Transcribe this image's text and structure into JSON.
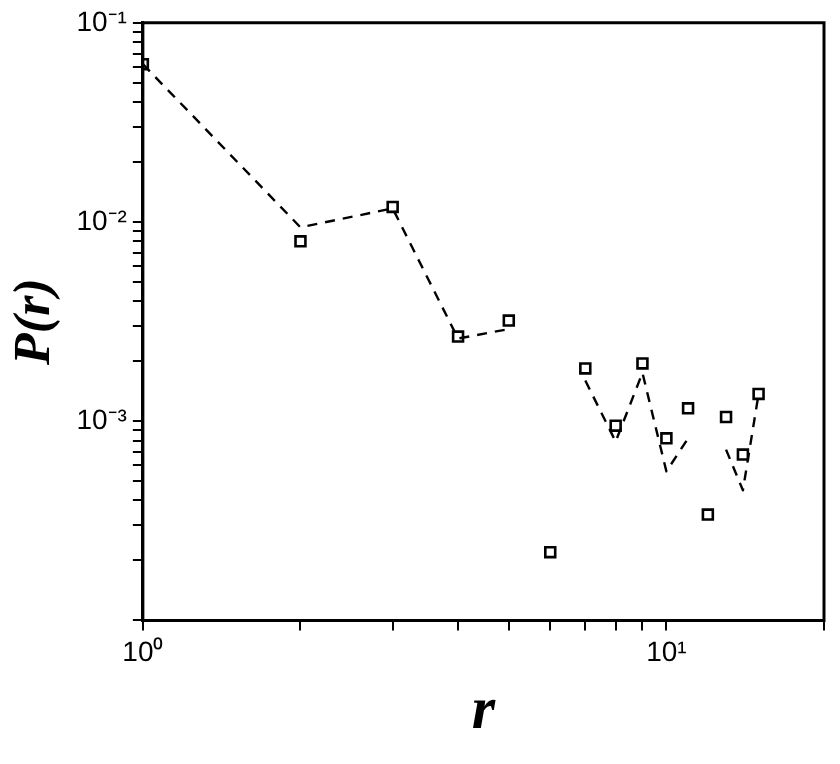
{
  "chart_data": {
    "type": "scatter",
    "xlabel": "r",
    "ylabel": "P(r)",
    "log": "xy",
    "grid": false,
    "legend": false,
    "x": [
      1,
      2,
      3,
      4,
      5,
      6,
      7,
      8,
      9,
      10,
      11,
      12,
      13,
      14,
      15
    ],
    "xlim": [
      1,
      20
    ],
    "ylim": [
      0.0001,
      0.1
    ],
    "xticks": [
      {
        "value": 1,
        "label": "10⁰"
      },
      {
        "value": 2,
        "label": null
      },
      {
        "value": 3,
        "label": null
      },
      {
        "value": 4,
        "label": null
      },
      {
        "value": 5,
        "label": null
      },
      {
        "value": 6,
        "label": null
      },
      {
        "value": 7,
        "label": null
      },
      {
        "value": 8,
        "label": null
      },
      {
        "value": 9,
        "label": null
      },
      {
        "value": 10,
        "label": "10¹"
      },
      {
        "value": 20,
        "label": null
      }
    ],
    "yticks": [
      {
        "value": 0.0001,
        "label": null
      },
      {
        "value": 0.0002,
        "label": null
      },
      {
        "value": 0.0003,
        "label": null
      },
      {
        "value": 0.0004,
        "label": null
      },
      {
        "value": 0.0005,
        "label": null
      },
      {
        "value": 0.0006,
        "label": null
      },
      {
        "value": 0.0007,
        "label": null
      },
      {
        "value": 0.0008,
        "label": null
      },
      {
        "value": 0.0009,
        "label": null
      },
      {
        "value": 0.001,
        "label": "10⁻³"
      },
      {
        "value": 0.002,
        "label": null
      },
      {
        "value": 0.003,
        "label": null
      },
      {
        "value": 0.004,
        "label": null
      },
      {
        "value": 0.005,
        "label": null
      },
      {
        "value": 0.006,
        "label": null
      },
      {
        "value": 0.007,
        "label": null
      },
      {
        "value": 0.008,
        "label": null
      },
      {
        "value": 0.009,
        "label": null
      },
      {
        "value": 0.01,
        "label": "10⁻²"
      },
      {
        "value": 0.02,
        "label": null
      },
      {
        "value": 0.03,
        "label": null
      },
      {
        "value": 0.04,
        "label": null
      },
      {
        "value": 0.05,
        "label": null
      },
      {
        "value": 0.06,
        "label": null
      },
      {
        "value": 0.07,
        "label": null
      },
      {
        "value": 0.08,
        "label": null
      },
      {
        "value": 0.09,
        "label": null
      },
      {
        "value": 0.1,
        "label": "10⁻¹"
      }
    ],
    "series": [
      {
        "type": "line",
        "color": "#000000",
        "marker": "none",
        "line_style": "dashed",
        "values": [
          0.062,
          0.0094,
          0.0117,
          0.0026,
          0.0029,
          null,
          0.0016,
          0.00079,
          0.00175,
          0.00056,
          0.00082,
          null,
          0.00072,
          0.00045,
          0.00137
        ]
      },
      {
        "type": "scatter",
        "color": "#000000",
        "marker": "square",
        "values": [
          0.062,
          0.008,
          0.0119,
          0.00266,
          0.0032,
          0.00022,
          0.00184,
          0.00095,
          0.00195,
          0.00082,
          0.00116,
          0.00034,
          0.00105,
          0.00068,
          0.00137
        ]
      }
    ]
  }
}
